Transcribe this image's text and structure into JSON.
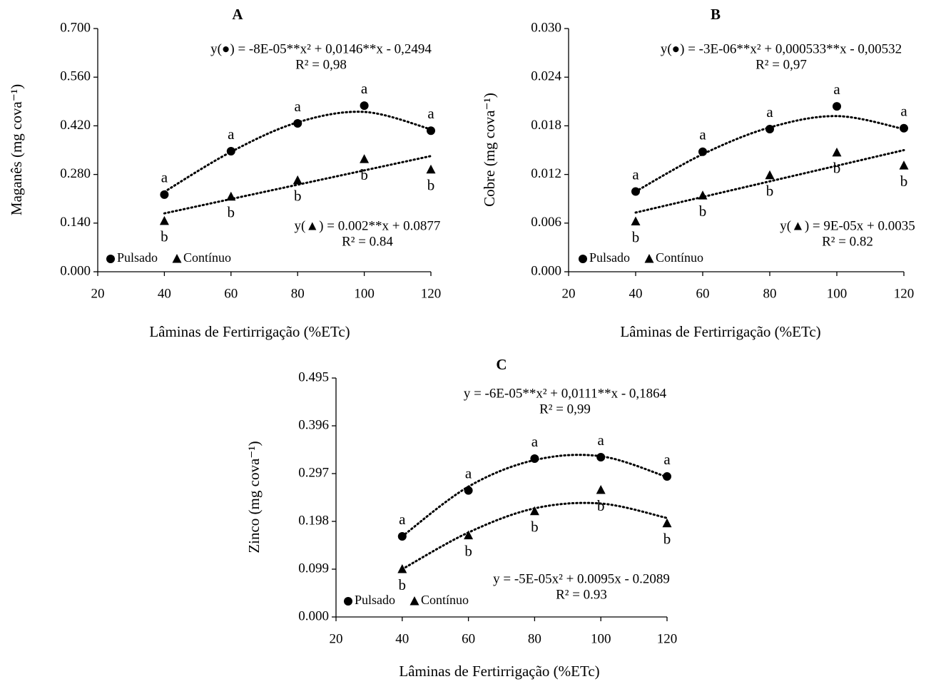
{
  "chart_data": [
    {
      "type": "scatter",
      "title": "A",
      "x_label": "Lâminas de Fertirrigação (%ETc)",
      "y_label": "Maganês (mg cova⁻¹)",
      "x": [
        40,
        60,
        80,
        100,
        120
      ],
      "xlim": [
        20,
        120
      ],
      "xticks": [
        20,
        40,
        60,
        80,
        100,
        120
      ],
      "ylim": [
        0,
        0.7
      ],
      "yticks": [
        {
          "value": 0,
          "label": "0.000"
        },
        {
          "value": 0.14,
          "label": "0.140"
        },
        {
          "value": 0.28,
          "label": "0.280"
        },
        {
          "value": 0.42,
          "label": "0.420"
        },
        {
          "value": 0.56,
          "label": "0.560"
        },
        {
          "value": 0.7,
          "label": "0.700"
        }
      ],
      "legend": "lower left",
      "series": [
        {
          "name": "Pulsado",
          "marker": "circle",
          "color": "#000000",
          "values": [
            0.222,
            0.347,
            0.427,
            0.478,
            0.406
          ],
          "labels": [
            "a",
            "a",
            "a",
            "a",
            "a"
          ],
          "equation": "y(●) = -8E-05**x² + 0,0146**x - 0,2494",
          "r2": "R² = 0,98",
          "trend": {
            "x": [
              40,
              60,
              80,
              100,
              120
            ],
            "values": [
              0.23,
              0.345,
              0.43,
              0.46,
              0.41
            ]
          }
        },
        {
          "name": "Contínuo",
          "marker": "triangle",
          "color": "#000000",
          "values": [
            0.146,
            0.216,
            0.263,
            0.324,
            0.294
          ],
          "labels": [
            "b",
            "b",
            "b",
            "b",
            "b"
          ],
          "equation": "y(▲) = 0.002**x + 0.0877",
          "r2": "R² = 0.84",
          "trend": {
            "x": [
              40,
              120
            ],
            "values": [
              0.168,
              0.333
            ]
          }
        }
      ]
    },
    {
      "type": "scatter",
      "title": "B",
      "x_label": "Lâminas de Fertirrigação (%ETc)",
      "y_label": "Cobre (mg cova⁻¹)",
      "x": [
        40,
        60,
        80,
        100,
        120
      ],
      "xlim": [
        20,
        120
      ],
      "xticks": [
        20,
        40,
        60,
        80,
        100,
        120
      ],
      "ylim": [
        0,
        0.03
      ],
      "yticks": [
        {
          "value": 0,
          "label": "0.000"
        },
        {
          "value": 0.006,
          "label": "0.006"
        },
        {
          "value": 0.012,
          "label": "0.012"
        },
        {
          "value": 0.018,
          "label": "0.018"
        },
        {
          "value": 0.024,
          "label": "0.024"
        },
        {
          "value": 0.03,
          "label": "0.030"
        }
      ],
      "legend": "lower left",
      "series": [
        {
          "name": "Pulsado",
          "marker": "circle",
          "color": "#000000",
          "values": [
            0.0099,
            0.0148,
            0.0176,
            0.0204,
            0.0177
          ],
          "labels": [
            "a",
            "a",
            "a",
            "a",
            "a"
          ],
          "equation": "y(●) = -3E-06**x² + 0,000533**x - 0,00532",
          "r2": "R² = 0,97",
          "trend": {
            "x": [
              40,
              60,
              80,
              100,
              120
            ],
            "values": [
              0.0099,
              0.0145,
              0.0178,
              0.0192,
              0.0176
            ]
          }
        },
        {
          "name": "Contínuo",
          "marker": "triangle",
          "color": "#000000",
          "values": [
            0.0062,
            0.0094,
            0.0119,
            0.0147,
            0.0131
          ],
          "labels": [
            "b",
            "b",
            "b",
            "b",
            "b"
          ],
          "equation": "y(▲) = 9E-05x + 0.0035",
          "r2": "R² = 0.82",
          "trend": {
            "x": [
              40,
              120
            ],
            "values": [
              0.0073,
              0.015
            ]
          }
        }
      ]
    },
    {
      "type": "scatter",
      "title": "C",
      "x_label": "Lâminas de Fertirrigação (%ETc)",
      "y_label": "Zinco (mg cova⁻¹)",
      "x": [
        40,
        60,
        80,
        100,
        120
      ],
      "xlim": [
        20,
        120
      ],
      "xticks": [
        20,
        40,
        60,
        80,
        100,
        120
      ],
      "ylim": [
        0,
        0.495
      ],
      "yticks": [
        {
          "value": 0,
          "label": "0.000"
        },
        0.099,
        0.198,
        0.297,
        0.396,
        0.495
      ],
      "legend": "lower left",
      "series": [
        {
          "name": "Pulsado",
          "marker": "circle",
          "color": "#000000",
          "values": [
            0.167,
            0.262,
            0.328,
            0.331,
            0.291
          ],
          "labels": [
            "a",
            "a",
            "a",
            "a",
            "a"
          ],
          "equation": "y = -6E-05**x² + 0,0111**x - 0,1864",
          "r2": "R² = 0,99",
          "trend": {
            "x": [
              40,
              60,
              80,
              100,
              120
            ],
            "values": [
              0.167,
              0.27,
              0.325,
              0.333,
              0.29
            ]
          }
        },
        {
          "name": "Contínuo",
          "marker": "triangle",
          "color": "#000000",
          "values": [
            0.099,
            0.169,
            0.219,
            0.263,
            0.194
          ],
          "labels": [
            "b",
            "b",
            "b",
            "b",
            "b"
          ],
          "equation": "y = -5E-05x² + 0.0095x - 0.2089",
          "r2": "R² = 0.93",
          "trend": {
            "x": [
              40,
              60,
              80,
              100,
              120
            ],
            "values": [
              0.099,
              0.175,
              0.225,
              0.235,
              0.205
            ]
          }
        }
      ]
    }
  ]
}
